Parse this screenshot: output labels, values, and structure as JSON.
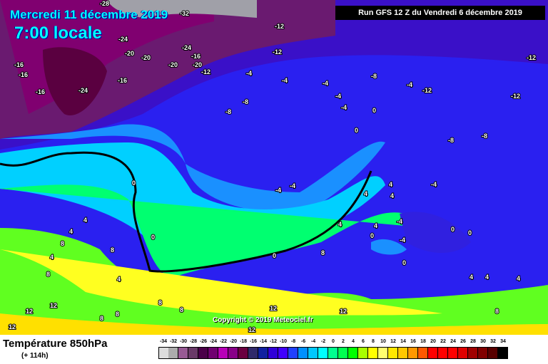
{
  "header": {
    "date": "Mercredi 11 décembre 2019",
    "time": "7:00 locale",
    "run": "Run GFS 12 Z du Vendredi 6 décembre 2019"
  },
  "footer": {
    "title": "Température 850hPa",
    "lead": "(+ 114h)",
    "copyright": "Copyright © 2019 Meteociel.fr"
  },
  "legend": {
    "labels": [
      "-34",
      "-32",
      "-30",
      "-28",
      "-26",
      "-24",
      "-22",
      "-20",
      "-18",
      "-16",
      "-14",
      "-12",
      "-10",
      "-8",
      "-6",
      "-4",
      "-2",
      "0",
      "2",
      "4",
      "6",
      "8",
      "10",
      "12",
      "14",
      "16",
      "18",
      "20",
      "22",
      "24",
      "26",
      "28",
      "30",
      "32",
      "34"
    ],
    "colors": [
      "#dcdcdc",
      "#acacac",
      "#985a94",
      "#6a3a68",
      "#4a0048",
      "#700070",
      "#b800b8",
      "#880088",
      "#6a0040",
      "#302a6a",
      "#1020a0",
      "#3000d8",
      "#4000ff",
      "#2040ff",
      "#0090ff",
      "#00c8ff",
      "#00ffff",
      "#00ff90",
      "#00ff50",
      "#00ff00",
      "#a8ff00",
      "#ffff00",
      "#ffff70",
      "#ffe800",
      "#ffc800",
      "#ff9800",
      "#ff5800",
      "#ff0000",
      "#ff0000",
      "#ff0000",
      "#e00000",
      "#a00000",
      "#800000",
      "#580000",
      "#000000"
    ]
  },
  "contour_labels": [
    "-28",
    "-32",
    "-24",
    "-20",
    "-20",
    "-24",
    "-20",
    "-16",
    "-20",
    "-12",
    "-16",
    "-16",
    "-24",
    "-16",
    "-16",
    "-12",
    "-12",
    "-4",
    "-4",
    "-8",
    "-4",
    "-4",
    "-4",
    "-8",
    "-8",
    "-4",
    "-12",
    "-12",
    "-12",
    "-8",
    "-8",
    "-4",
    "-4",
    "-4",
    "0",
    "0",
    "4",
    "4",
    "4",
    "4",
    "8",
    "4",
    "4",
    "8",
    "8",
    "4",
    "8",
    "4",
    "0",
    "0",
    "0",
    "4",
    "12",
    "12",
    "12",
    "8",
    "8",
    "8",
    "12",
    "12",
    "8",
    "12",
    "-4",
    "-4",
    "0",
    "0",
    "0",
    "0",
    "4",
    "4",
    "8",
    "4"
  ]
}
